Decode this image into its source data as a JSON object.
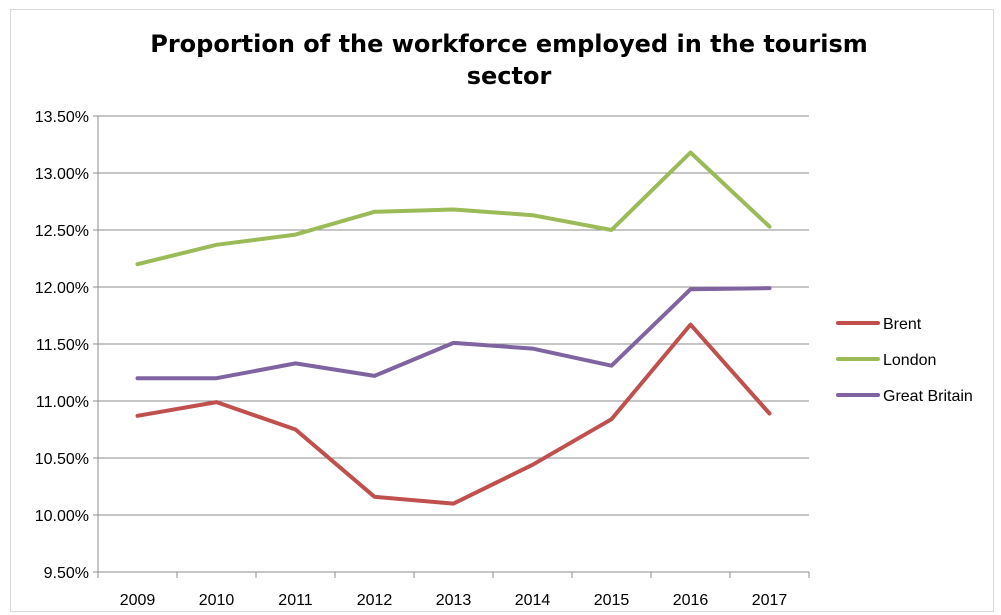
{
  "chart_data": {
    "type": "line",
    "title_lines": [
      "Proportion of the workforce employed in the tourism",
      "sector"
    ],
    "x": [
      "2009",
      "2010",
      "2011",
      "2012",
      "2013",
      "2014",
      "2015",
      "2016",
      "2017"
    ],
    "ylim": [
      9.5,
      13.5
    ],
    "yticks": [
      9.5,
      10.0,
      10.5,
      11.0,
      11.5,
      12.0,
      12.5,
      13.0,
      13.5
    ],
    "ytick_labels": [
      "9.50%",
      "10.00%",
      "10.50%",
      "11.00%",
      "11.50%",
      "12.00%",
      "12.50%",
      "13.00%",
      "13.50%"
    ],
    "xlabel": "",
    "ylabel": "",
    "grid": true,
    "legend_position": "right",
    "series": [
      {
        "name": "Brent",
        "color": "#c0504d",
        "values": [
          10.87,
          10.99,
          10.75,
          10.16,
          10.1,
          10.44,
          10.84,
          11.67,
          10.89
        ]
      },
      {
        "name": "London",
        "color": "#9bbb59",
        "values": [
          12.2,
          12.37,
          12.46,
          12.66,
          12.68,
          12.63,
          12.5,
          13.18,
          12.53
        ]
      },
      {
        "name": "Great Britain",
        "color": "#8064a2",
        "values": [
          11.2,
          11.2,
          11.33,
          11.22,
          11.51,
          11.46,
          11.31,
          11.98,
          11.99
        ]
      }
    ]
  }
}
